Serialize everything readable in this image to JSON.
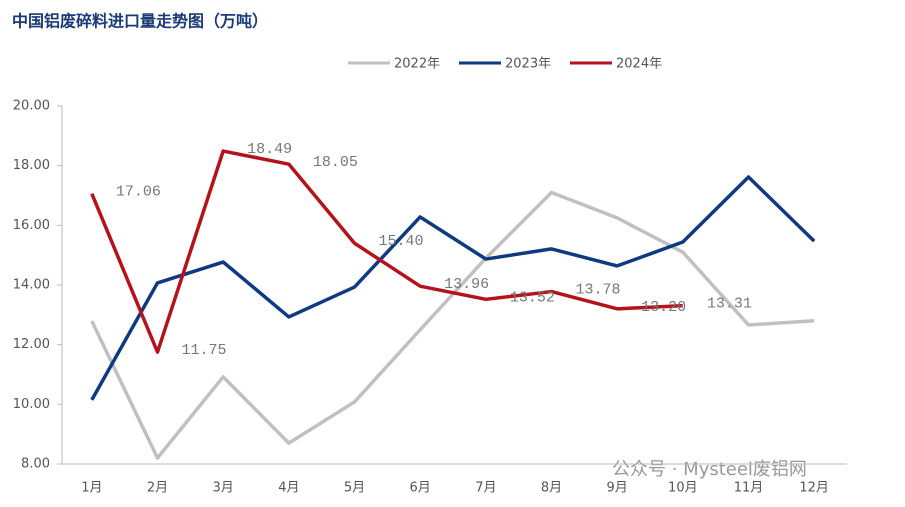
{
  "chart_data": {
    "type": "line",
    "title": "中国铝废碎料进口量走势图（万吨）",
    "footer": "公众号 · Mysteel废铝网",
    "categories": [
      "1月",
      "2月",
      "3月",
      "4月",
      "5月",
      "6月",
      "7月",
      "8月",
      "9月",
      "10月",
      "11月",
      "12月"
    ],
    "series": [
      {
        "name": "2022年",
        "color": "#c0c0c0",
        "values": [
          12.79,
          8.2,
          10.92,
          8.7,
          10.08,
          12.5,
          14.9,
          17.1,
          16.25,
          15.1,
          12.66,
          12.8
        ]
      },
      {
        "name": "2023年",
        "color": "#0d3a80",
        "values": [
          10.15,
          14.07,
          14.77,
          12.93,
          13.93,
          16.28,
          14.87,
          15.21,
          14.64,
          15.44,
          17.62,
          15.47
        ]
      },
      {
        "name": "2024年",
        "color": "#b5121b",
        "values": [
          17.06,
          11.75,
          18.49,
          18.05,
          15.4,
          13.96,
          13.52,
          13.78,
          13.2,
          13.31,
          null,
          null
        ],
        "value_labels": [
          "17.06",
          "11.75",
          "18.49",
          "18.05",
          "15.40",
          "13.96",
          "13.52",
          "13.78",
          "13.20",
          "13.31",
          null,
          null
        ]
      }
    ],
    "ylim": [
      8,
      20
    ],
    "yticks": [
      {
        "value": 8,
        "label": "8.00"
      },
      {
        "value": 10,
        "label": "10.00"
      },
      {
        "value": 12,
        "label": "12.00"
      },
      {
        "value": 14,
        "label": "14.00"
      },
      {
        "value": 16,
        "label": "16.00"
      },
      {
        "value": 18,
        "label": "18.00"
      },
      {
        "value": 20,
        "label": "20.00"
      }
    ],
    "legend": "top"
  }
}
